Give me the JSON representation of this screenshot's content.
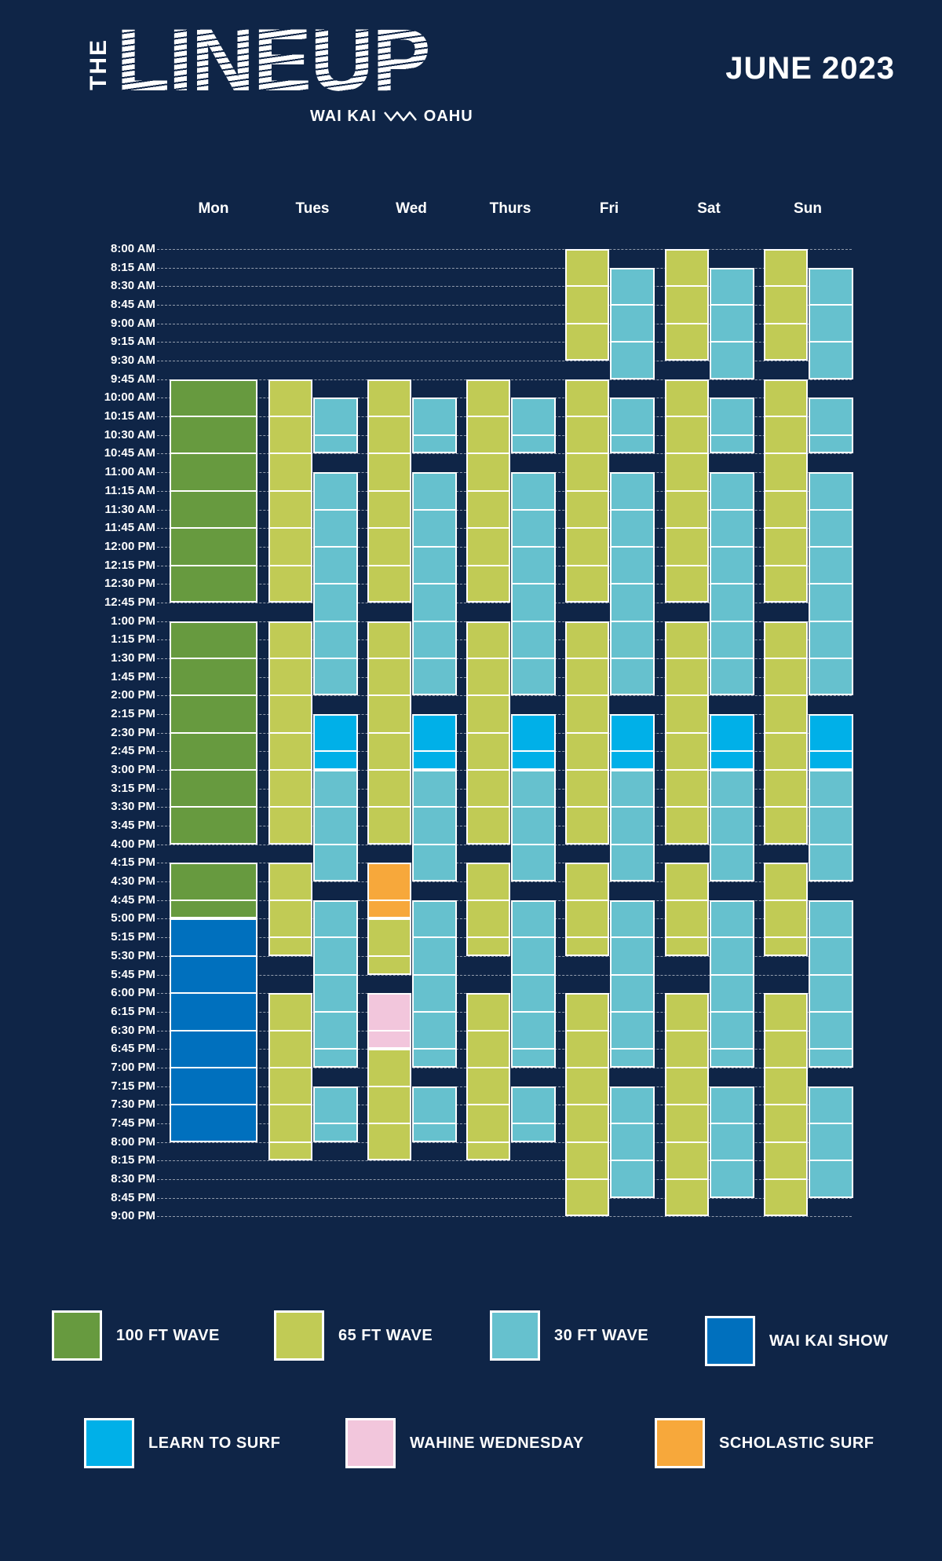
{
  "header": {
    "logo_prefix": "THE",
    "logo_word": "LINEUP",
    "location_left": "WAI KAI",
    "location_right": "OAHU",
    "month": "JUNE 2023"
  },
  "days": [
    "Mon",
    "Tues",
    "Wed",
    "Thurs",
    "Fri",
    "Sat",
    "Sun"
  ],
  "times": [
    "8:00 AM",
    "8:15 AM",
    "8:30 AM",
    "8:45 AM",
    "9:00 AM",
    "9:15 AM",
    "9:30 AM",
    "9:45 AM",
    "10:00 AM",
    "10:15 AM",
    "10:30 AM",
    "10:45 AM",
    "11:00 AM",
    "11:15 AM",
    "11:30 AM",
    "11:45 AM",
    "12:00 PM",
    "12:15 PM",
    "12:30 PM",
    "12:45 PM",
    "1:00 PM",
    "1:15 PM",
    "1:30 PM",
    "1:45 PM",
    "2:00 PM",
    "2:15 PM",
    "2:30 PM",
    "2:45 PM",
    "3:00 PM",
    "3:15 PM",
    "3:30 PM",
    "3:45 PM",
    "4:00 PM",
    "4:15 PM",
    "4:30 PM",
    "4:45 PM",
    "5:00 PM",
    "5:15 PM",
    "5:30 PM",
    "5:45 PM",
    "6:00 PM",
    "6:15 PM",
    "6:30 PM",
    "6:45 PM",
    "7:00 PM",
    "7:15 PM",
    "7:30 PM",
    "7:45 PM",
    "8:00 PM",
    "8:15 PM",
    "8:30 PM",
    "8:45 PM",
    "9:00 PM"
  ],
  "categories": {
    "100ft": {
      "label": "100 FT WAVE",
      "color": "#679a3f"
    },
    "65ft": {
      "label": "65 FT WAVE",
      "color": "#c1cb55"
    },
    "30ft": {
      "label": "30 FT WAVE",
      "color": "#66c1ce"
    },
    "show": {
      "label": "WAI KAI SHOW",
      "color": "#0070be"
    },
    "learn": {
      "label": "LEARN TO SURF",
      "color": "#00b0e8"
    },
    "wahine": {
      "label": "WAHINE WEDNESDAY",
      "color": "#f2c6dc"
    },
    "scholastic": {
      "label": "SCHOLASTIC SURF",
      "color": "#f7a83b"
    }
  },
  "legend_order": [
    "100ft",
    "65ft",
    "30ft",
    "show",
    "learn",
    "wahine",
    "scholastic"
  ],
  "sessions": [
    {
      "day": 0,
      "lane": "full",
      "cat": "100ft",
      "start": "9:45 AM",
      "end": "12:45 PM"
    },
    {
      "day": 0,
      "lane": "full",
      "cat": "100ft",
      "start": "1:00 PM",
      "end": "4:00 PM"
    },
    {
      "day": 0,
      "lane": "full",
      "cat": "100ft",
      "start": "4:15 PM",
      "end": "5:00 PM"
    },
    {
      "day": 0,
      "lane": "full",
      "cat": "show",
      "start": "5:00 PM",
      "end": "8:00 PM"
    },
    {
      "day": 1,
      "lane": "left",
      "cat": "65ft",
      "start": "9:45 AM",
      "end": "12:45 PM"
    },
    {
      "day": 1,
      "lane": "left",
      "cat": "65ft",
      "start": "1:00 PM",
      "end": "4:00 PM"
    },
    {
      "day": 1,
      "lane": "left",
      "cat": "65ft",
      "start": "4:15 PM",
      "end": "5:30 PM"
    },
    {
      "day": 1,
      "lane": "left",
      "cat": "65ft",
      "start": "6:00 PM",
      "end": "8:15 PM"
    },
    {
      "day": 1,
      "lane": "right",
      "cat": "30ft",
      "start": "10:00 AM",
      "end": "10:45 AM"
    },
    {
      "day": 1,
      "lane": "right",
      "cat": "30ft",
      "start": "11:00 AM",
      "end": "2:00 PM"
    },
    {
      "day": 1,
      "lane": "right",
      "cat": "learn",
      "start": "2:15 PM",
      "end": "3:00 PM"
    },
    {
      "day": 1,
      "lane": "right",
      "cat": "30ft",
      "start": "3:00 PM",
      "end": "4:30 PM"
    },
    {
      "day": 1,
      "lane": "right",
      "cat": "30ft",
      "start": "4:45 PM",
      "end": "7:00 PM"
    },
    {
      "day": 1,
      "lane": "right",
      "cat": "30ft",
      "start": "7:15 PM",
      "end": "8:00 PM"
    },
    {
      "day": 2,
      "lane": "left",
      "cat": "65ft",
      "start": "9:45 AM",
      "end": "12:45 PM"
    },
    {
      "day": 2,
      "lane": "left",
      "cat": "65ft",
      "start": "1:00 PM",
      "end": "4:00 PM"
    },
    {
      "day": 2,
      "lane": "left",
      "cat": "scholastic",
      "start": "4:15 PM",
      "end": "5:00 PM"
    },
    {
      "day": 2,
      "lane": "left",
      "cat": "65ft",
      "start": "5:00 PM",
      "end": "5:45 PM"
    },
    {
      "day": 2,
      "lane": "left",
      "cat": "wahine",
      "start": "6:00 PM",
      "end": "6:45 PM"
    },
    {
      "day": 2,
      "lane": "left",
      "cat": "65ft",
      "start": "6:45 PM",
      "end": "8:15 PM"
    },
    {
      "day": 2,
      "lane": "right",
      "cat": "30ft",
      "start": "10:00 AM",
      "end": "10:45 AM"
    },
    {
      "day": 2,
      "lane": "right",
      "cat": "30ft",
      "start": "11:00 AM",
      "end": "2:00 PM"
    },
    {
      "day": 2,
      "lane": "right",
      "cat": "learn",
      "start": "2:15 PM",
      "end": "3:00 PM"
    },
    {
      "day": 2,
      "lane": "right",
      "cat": "30ft",
      "start": "3:00 PM",
      "end": "4:30 PM"
    },
    {
      "day": 2,
      "lane": "right",
      "cat": "30ft",
      "start": "4:45 PM",
      "end": "7:00 PM"
    },
    {
      "day": 2,
      "lane": "right",
      "cat": "30ft",
      "start": "7:15 PM",
      "end": "8:00 PM"
    },
    {
      "day": 3,
      "lane": "left",
      "cat": "65ft",
      "start": "9:45 AM",
      "end": "12:45 PM"
    },
    {
      "day": 3,
      "lane": "left",
      "cat": "65ft",
      "start": "1:00 PM",
      "end": "4:00 PM"
    },
    {
      "day": 3,
      "lane": "left",
      "cat": "65ft",
      "start": "4:15 PM",
      "end": "5:30 PM"
    },
    {
      "day": 3,
      "lane": "left",
      "cat": "65ft",
      "start": "6:00 PM",
      "end": "8:15 PM"
    },
    {
      "day": 3,
      "lane": "right",
      "cat": "30ft",
      "start": "10:00 AM",
      "end": "10:45 AM"
    },
    {
      "day": 3,
      "lane": "right",
      "cat": "30ft",
      "start": "11:00 AM",
      "end": "2:00 PM"
    },
    {
      "day": 3,
      "lane": "right",
      "cat": "learn",
      "start": "2:15 PM",
      "end": "3:00 PM"
    },
    {
      "day": 3,
      "lane": "right",
      "cat": "30ft",
      "start": "3:00 PM",
      "end": "4:30 PM"
    },
    {
      "day": 3,
      "lane": "right",
      "cat": "30ft",
      "start": "4:45 PM",
      "end": "7:00 PM"
    },
    {
      "day": 3,
      "lane": "right",
      "cat": "30ft",
      "start": "7:15 PM",
      "end": "8:00 PM"
    },
    {
      "day": 4,
      "lane": "left",
      "cat": "65ft",
      "start": "8:00 AM",
      "end": "9:30 AM"
    },
    {
      "day": 4,
      "lane": "left",
      "cat": "65ft",
      "start": "9:45 AM",
      "end": "12:45 PM"
    },
    {
      "day": 4,
      "lane": "left",
      "cat": "65ft",
      "start": "1:00 PM",
      "end": "4:00 PM"
    },
    {
      "day": 4,
      "lane": "left",
      "cat": "65ft",
      "start": "4:15 PM",
      "end": "5:30 PM"
    },
    {
      "day": 4,
      "lane": "left",
      "cat": "65ft",
      "start": "6:00 PM",
      "end": "9:00 PM"
    },
    {
      "day": 4,
      "lane": "right",
      "cat": "30ft",
      "start": "8:15 AM",
      "end": "9:45 AM"
    },
    {
      "day": 4,
      "lane": "right",
      "cat": "30ft",
      "start": "10:00 AM",
      "end": "10:45 AM"
    },
    {
      "day": 4,
      "lane": "right",
      "cat": "30ft",
      "start": "11:00 AM",
      "end": "2:00 PM"
    },
    {
      "day": 4,
      "lane": "right",
      "cat": "learn",
      "start": "2:15 PM",
      "end": "3:00 PM"
    },
    {
      "day": 4,
      "lane": "right",
      "cat": "30ft",
      "start": "3:00 PM",
      "end": "4:30 PM"
    },
    {
      "day": 4,
      "lane": "right",
      "cat": "30ft",
      "start": "4:45 PM",
      "end": "7:00 PM"
    },
    {
      "day": 4,
      "lane": "right",
      "cat": "30ft",
      "start": "7:15 PM",
      "end": "8:45 PM"
    },
    {
      "day": 5,
      "lane": "left",
      "cat": "65ft",
      "start": "8:00 AM",
      "end": "9:30 AM"
    },
    {
      "day": 5,
      "lane": "left",
      "cat": "65ft",
      "start": "9:45 AM",
      "end": "12:45 PM"
    },
    {
      "day": 5,
      "lane": "left",
      "cat": "65ft",
      "start": "1:00 PM",
      "end": "4:00 PM"
    },
    {
      "day": 5,
      "lane": "left",
      "cat": "65ft",
      "start": "4:15 PM",
      "end": "5:30 PM"
    },
    {
      "day": 5,
      "lane": "left",
      "cat": "65ft",
      "start": "6:00 PM",
      "end": "9:00 PM"
    },
    {
      "day": 5,
      "lane": "right",
      "cat": "30ft",
      "start": "8:15 AM",
      "end": "9:45 AM"
    },
    {
      "day": 5,
      "lane": "right",
      "cat": "30ft",
      "start": "10:00 AM",
      "end": "10:45 AM"
    },
    {
      "day": 5,
      "lane": "right",
      "cat": "30ft",
      "start": "11:00 AM",
      "end": "2:00 PM"
    },
    {
      "day": 5,
      "lane": "right",
      "cat": "learn",
      "start": "2:15 PM",
      "end": "3:00 PM"
    },
    {
      "day": 5,
      "lane": "right",
      "cat": "30ft",
      "start": "3:00 PM",
      "end": "4:30 PM"
    },
    {
      "day": 5,
      "lane": "right",
      "cat": "30ft",
      "start": "4:45 PM",
      "end": "7:00 PM"
    },
    {
      "day": 5,
      "lane": "right",
      "cat": "30ft",
      "start": "7:15 PM",
      "end": "8:45 PM"
    },
    {
      "day": 6,
      "lane": "left",
      "cat": "65ft",
      "start": "8:00 AM",
      "end": "9:30 AM"
    },
    {
      "day": 6,
      "lane": "left",
      "cat": "65ft",
      "start": "9:45 AM",
      "end": "12:45 PM"
    },
    {
      "day": 6,
      "lane": "left",
      "cat": "65ft",
      "start": "1:00 PM",
      "end": "4:00 PM"
    },
    {
      "day": 6,
      "lane": "left",
      "cat": "65ft",
      "start": "4:15 PM",
      "end": "5:30 PM"
    },
    {
      "day": 6,
      "lane": "left",
      "cat": "65ft",
      "start": "6:00 PM",
      "end": "9:00 PM"
    },
    {
      "day": 6,
      "lane": "right",
      "cat": "30ft",
      "start": "8:15 AM",
      "end": "9:45 AM"
    },
    {
      "day": 6,
      "lane": "right",
      "cat": "30ft",
      "start": "10:00 AM",
      "end": "10:45 AM"
    },
    {
      "day": 6,
      "lane": "right",
      "cat": "30ft",
      "start": "11:00 AM",
      "end": "2:00 PM"
    },
    {
      "day": 6,
      "lane": "right",
      "cat": "learn",
      "start": "2:15 PM",
      "end": "3:00 PM"
    },
    {
      "day": 6,
      "lane": "right",
      "cat": "30ft",
      "start": "3:00 PM",
      "end": "4:30 PM"
    },
    {
      "day": 6,
      "lane": "right",
      "cat": "30ft",
      "start": "4:45 PM",
      "end": "7:00 PM"
    },
    {
      "day": 6,
      "lane": "right",
      "cat": "30ft",
      "start": "7:15 PM",
      "end": "8:45 PM"
    }
  ]
}
